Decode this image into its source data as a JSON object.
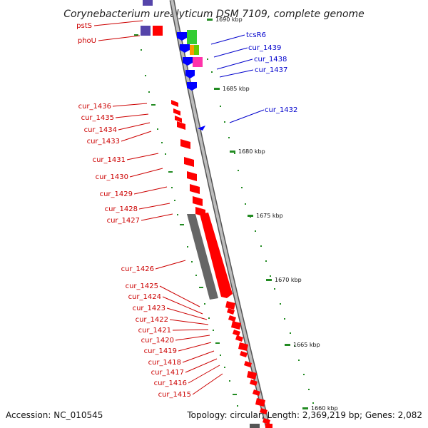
{
  "title": "Corynebacterium urealyticum DSM 7109, complete genome",
  "accession": "Accession: NC_010545",
  "summary": "Topology: circular; Length: 2,369,219 bp; Genes: 2,082",
  "colors": {
    "forward_gene": "#ff0000",
    "reverse_gene": "#0000ff",
    "forward_label": "#cc0000",
    "reverse_label": "#0000cc",
    "backbone": "#999999",
    "tick": "#228b22",
    "dark_feature": "#666666"
  },
  "ticks": [
    {
      "label": "1690 kbp",
      "kbp": 1690
    },
    {
      "label": "1685 kbp",
      "kbp": 1685
    },
    {
      "label": "1680 kbp",
      "kbp": 1680
    },
    {
      "label": "1675 kbp",
      "kbp": 1675
    },
    {
      "label": "1670 kbp",
      "kbp": 1670
    },
    {
      "label": "1665 kbp",
      "kbp": 1665
    },
    {
      "label": "1660 kbp",
      "kbp": 1660
    }
  ],
  "reverse_labels": [
    "tcsR6",
    "cur_1439",
    "cur_1438",
    "cur_1437",
    "cur_1432"
  ],
  "forward_labels": [
    "pstS",
    "phoU",
    "cur_1436",
    "cur_1435",
    "cur_1434",
    "cur_1433",
    "cur_1431",
    "cur_1430",
    "cur_1429",
    "cur_1428",
    "cur_1427",
    "cur_1426",
    "cur_1425",
    "cur_1424",
    "cur_1423",
    "cur_1422",
    "cur_1421",
    "cur_1420",
    "cur_1419",
    "cur_1418",
    "cur_1417",
    "cur_1416",
    "cur_1415"
  ]
}
